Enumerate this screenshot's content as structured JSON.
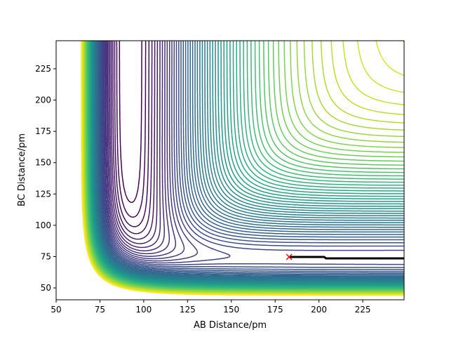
{
  "chart_data": {
    "type": "contour",
    "title": "",
    "xlabel": "AB Distance/pm",
    "ylabel": "BC Distance/pm",
    "xlim": [
      50,
      248.6
    ],
    "ylim": [
      40.5,
      247.4
    ],
    "xticks": [
      50,
      75,
      100,
      125,
      150,
      175,
      200,
      225
    ],
    "yticks": [
      50,
      75,
      100,
      125,
      150,
      175,
      200,
      225
    ],
    "xtick_labels": [
      "50",
      "75",
      "100",
      "125",
      "150",
      "175",
      "200",
      "225"
    ],
    "ytick_labels": [
      "50",
      "75",
      "100",
      "125",
      "150",
      "175",
      "200",
      "225"
    ],
    "colormap": "viridis",
    "grid": false,
    "surface": "potential energy surface, valleys along AB ≈ 92 pm and BC ≈ 74 pm",
    "trajectory": {
      "color": "#000000",
      "points": [
        [
          183,
          74.7
        ],
        [
          203,
          74.7
        ],
        [
          204,
          73.6
        ],
        [
          248.6,
          73.6
        ]
      ]
    },
    "start_marker": {
      "x": 183,
      "y": 74.7,
      "symbol": "x",
      "color": "#ff0000"
    }
  }
}
